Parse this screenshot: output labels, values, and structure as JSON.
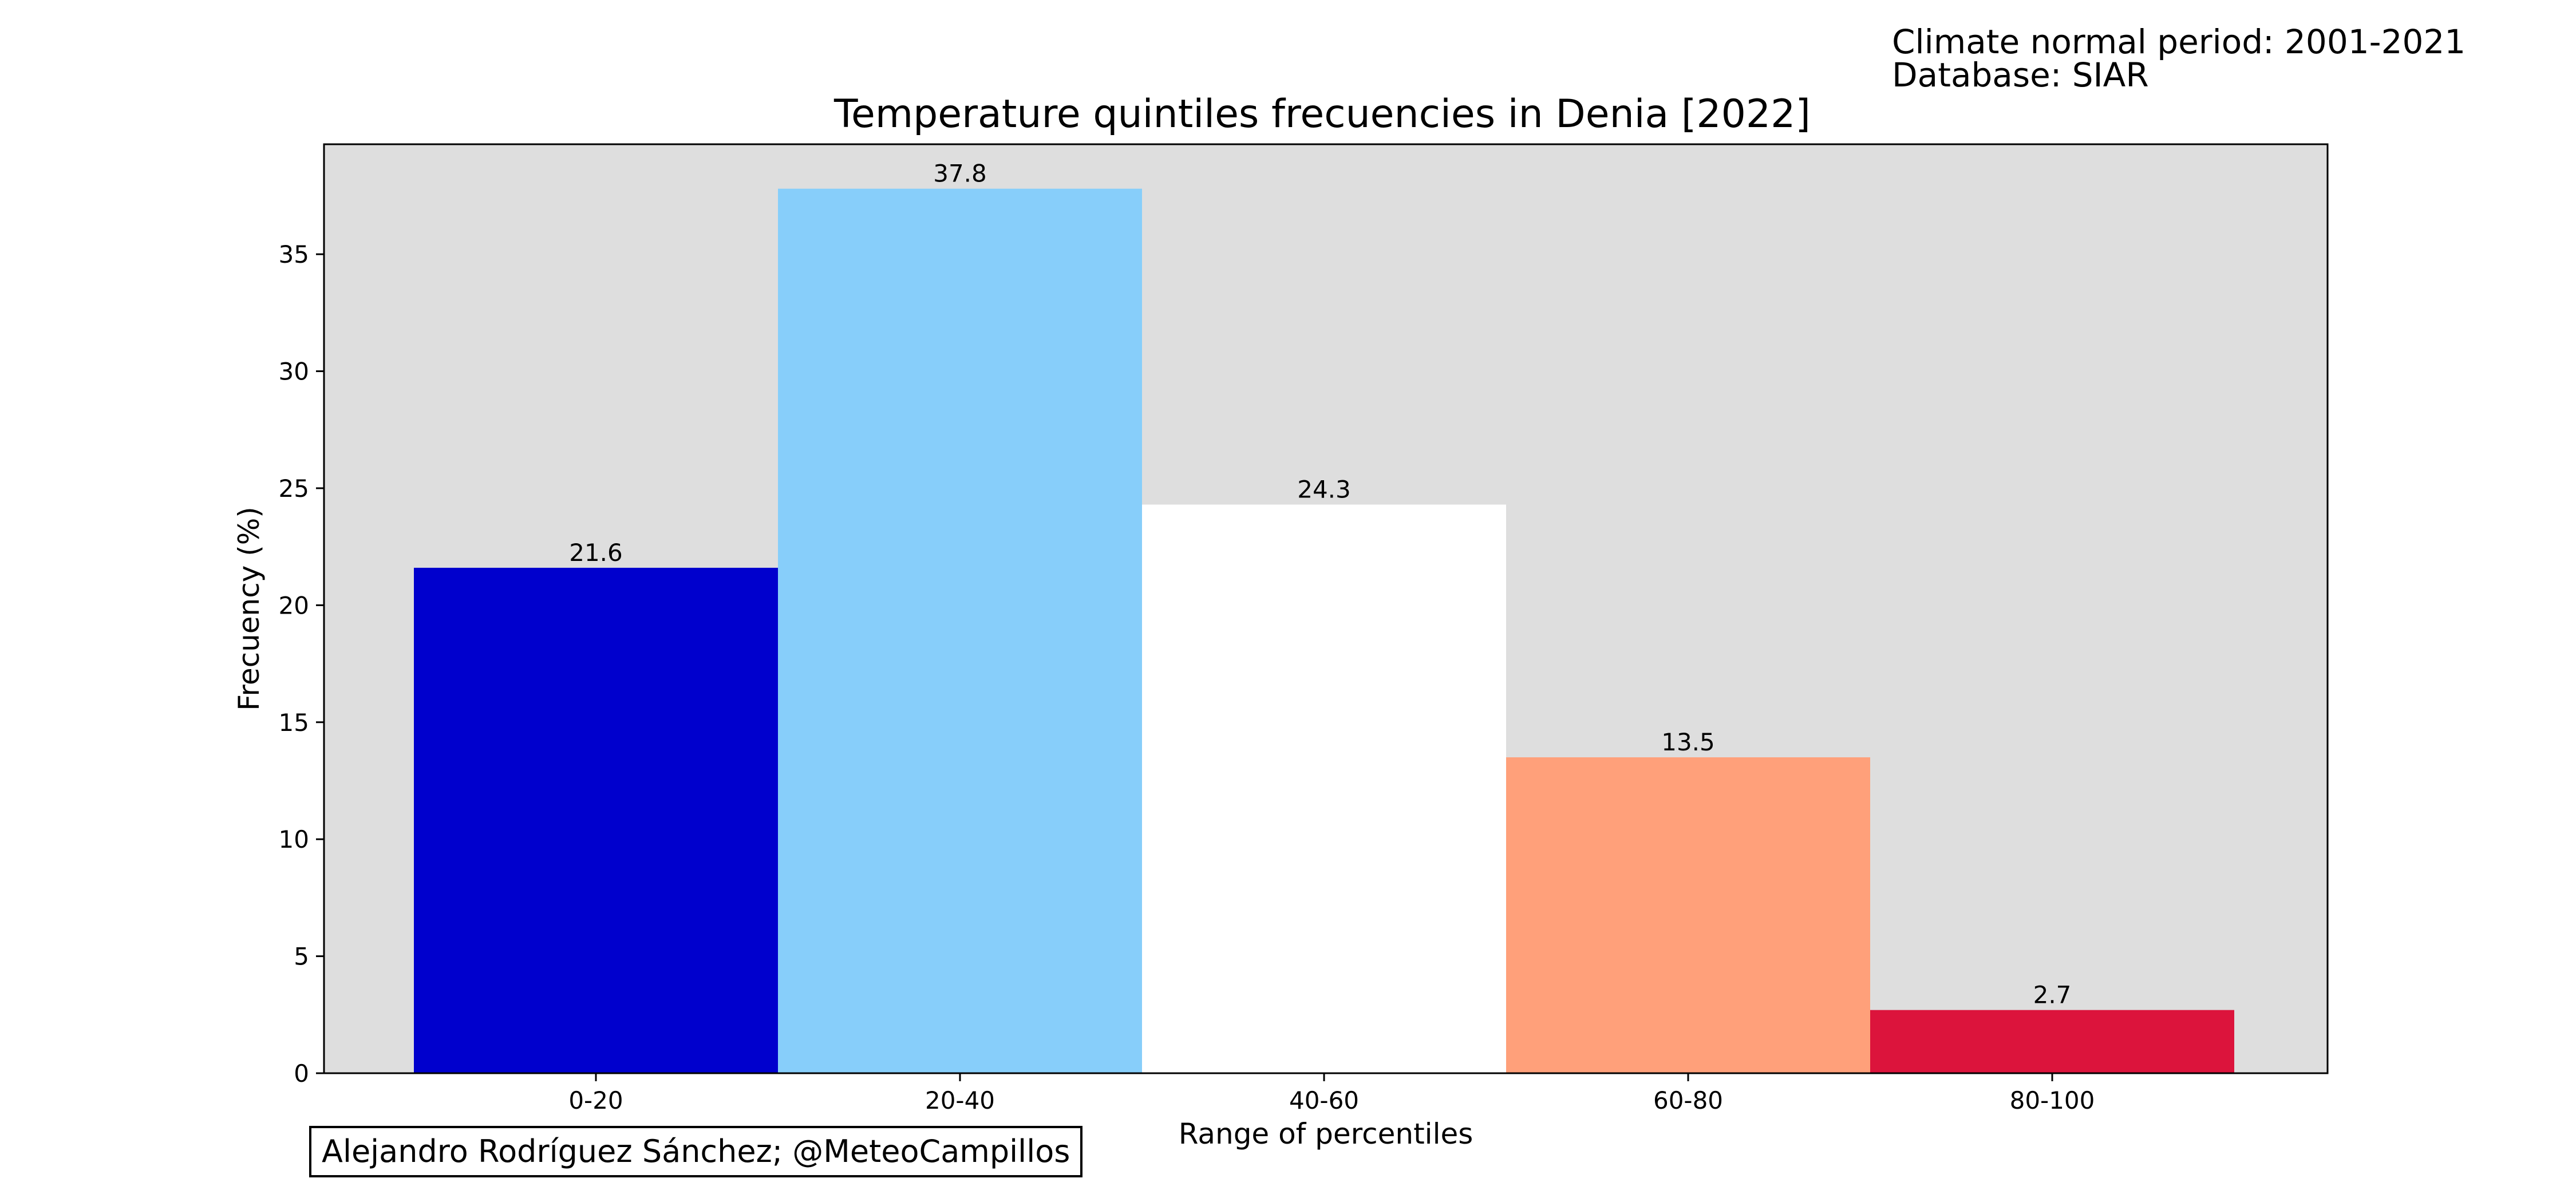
{
  "meta": {
    "normal_period": "Climate normal period: 2001-2021",
    "database": "Database: SIAR"
  },
  "credit": "Alejandro Rodríguez Sánchez; @MeteoCampillos",
  "chart_data": {
    "type": "bar",
    "title": "Temperature quintiles frecuencies in Denia [2022]",
    "xlabel": "Range of percentiles",
    "ylabel": "Frecuency (%)",
    "categories": [
      "0-20",
      "20-40",
      "40-60",
      "60-80",
      "80-100"
    ],
    "values": [
      21.6,
      37.8,
      24.3,
      13.5,
      2.7
    ],
    "value_labels": [
      "21.6",
      "37.8",
      "24.3",
      "13.5",
      "2.7"
    ],
    "colors": [
      "#0000cd",
      "#87cefa",
      "#ffffff",
      "#ffa07a",
      "#dc143c"
    ],
    "ylim": [
      0,
      39.7
    ],
    "yticks": [
      0,
      5,
      10,
      15,
      20,
      25,
      30,
      35
    ],
    "background_color": "#dedede",
    "grid": false,
    "legend": "none"
  }
}
